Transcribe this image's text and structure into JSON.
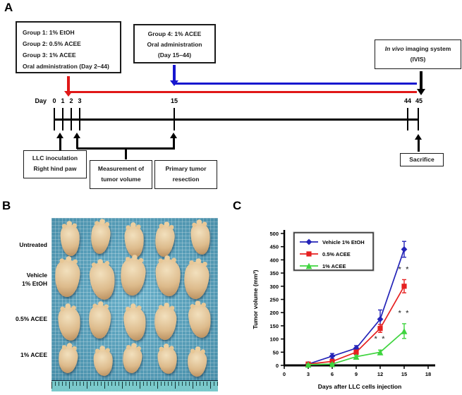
{
  "panels": {
    "a": {
      "letter": "A",
      "box_groups123": {
        "lines": [
          "Group 1: 1% EtOH",
          "Group 2: 0.5% ACEE",
          "Group 3: 1% ACEE",
          "Oral administration (Day 2–44)"
        ]
      },
      "box_group4": {
        "lines": [
          "Group 4: 1% ACEE",
          "Oral administration",
          "(Day 15–44)"
        ]
      },
      "box_ivis": {
        "italic_part": "In vivo",
        "rest_part": " imaging system",
        "line2": "(IVIS)"
      },
      "day_axis": {
        "prefix": "Day",
        "ticks": [
          "0",
          "1",
          "2",
          "3",
          "15",
          "44",
          "45"
        ]
      },
      "box_llc": {
        "lines": [
          "LLC inoculation",
          "Right hind paw"
        ]
      },
      "box_measure": {
        "lines": [
          "Measurement of",
          "tumor volume"
        ]
      },
      "box_resection": {
        "lines": [
          "Primary tumor",
          "resection"
        ]
      },
      "box_sacrifice": {
        "label": "Sacrifice"
      },
      "colors": {
        "red": "#e01818",
        "blue": "#1717cf",
        "black": "#000000"
      }
    },
    "b": {
      "letter": "B",
      "row_labels": [
        "Untreated",
        "Vehicle\n1% EtOH",
        "0.5% ACEE",
        "1% ACEE"
      ],
      "columns": 5
    },
    "c": {
      "letter": "C"
    }
  },
  "chart_data": {
    "type": "line",
    "x": [
      3,
      6,
      9,
      12,
      15
    ],
    "series": [
      {
        "name": "Vehicle 1% EtOH",
        "color": "#2424b8",
        "marker": "diamond",
        "values": [
          5,
          35,
          65,
          175,
          440
        ],
        "errors": [
          3,
          10,
          10,
          35,
          30
        ]
      },
      {
        "name": "0.5% ACEE",
        "color": "#e62020",
        "marker": "square",
        "values": [
          5,
          15,
          50,
          140,
          300
        ],
        "errors": [
          3,
          5,
          8,
          15,
          25
        ]
      },
      {
        "name": "1% ACEE",
        "color": "#3fd43f",
        "marker": "triangle",
        "values": [
          3,
          5,
          33,
          50,
          130
        ],
        "errors": [
          2,
          3,
          5,
          8,
          28
        ]
      }
    ],
    "title": "",
    "xlabel": "Days after LLC cells injection",
    "ylabel": "Tumor volume (mm³)",
    "xlim": [
      0,
      18
    ],
    "xticks": [
      0,
      3,
      6,
      9,
      12,
      15,
      18
    ],
    "ylim": [
      0,
      500
    ],
    "yticks": [
      0,
      50,
      100,
      150,
      200,
      250,
      300,
      350,
      400,
      450,
      500
    ],
    "grid": false,
    "legend_position": "top-left",
    "annotations": [
      {
        "text": "* *",
        "x": 12,
        "y": 92
      },
      {
        "text": "* *",
        "x": 15,
        "y": 355
      },
      {
        "text": "* *",
        "x": 15,
        "y": 190
      }
    ],
    "annotation_color": "#4d4d4d"
  }
}
